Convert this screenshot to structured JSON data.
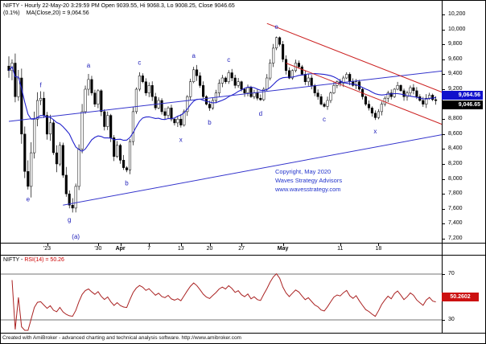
{
  "window": {
    "title_line1": "NIFTY - Hourly 22-May-20 3:29:59 PM Open 9039.55, Hi 9068.3, Lo 9008.25, Close 9046.65",
    "title_line2_pct": "(0.1%)",
    "title_line2_ma": "MA(Close,20) = 9,064.56"
  },
  "watermark": {
    "line1": "Copyright, May 2020",
    "line2": "Waves Strategy Advisors",
    "line3": "www.wavesstrategy.com"
  },
  "price_axis": {
    "labels": [
      "10,200",
      "10,000",
      "9,800",
      "9,600",
      "9,400",
      "9,200",
      "9,000",
      "8,800",
      "8,600",
      "8,400",
      "8,200",
      "8,000",
      "7,800",
      "7,600",
      "7,400",
      "7,200"
    ],
    "step": 200,
    "top_value": 10200,
    "badges": [
      {
        "text": "9,064.56",
        "price": 9064.56,
        "bg": "#1111cc",
        "offset": -11
      },
      {
        "text": "9,046.65",
        "price": 9046.65,
        "bg": "#000000",
        "offset": 0
      }
    ]
  },
  "time_axis": {
    "ticks": [
      {
        "label": "'23",
        "bar": 12,
        "bold": false
      },
      {
        "label": "'30",
        "bar": 28,
        "bold": false
      },
      {
        "label": "Apr",
        "bar": 35,
        "bold": true
      },
      {
        "label": "7",
        "bar": 44,
        "bold": false
      },
      {
        "label": "13",
        "bar": 54,
        "bold": false
      },
      {
        "label": "20",
        "bar": 63,
        "bold": false
      },
      {
        "label": "27",
        "bar": 73,
        "bold": false
      },
      {
        "label": "May",
        "bar": 86,
        "bold": true
      },
      {
        "label": "11",
        "bar": 104,
        "bold": false
      },
      {
        "label": "18",
        "bar": 116,
        "bold": false
      }
    ]
  },
  "rsi_panel": {
    "title_name": "NIFTY - ",
    "title_value": "RSI(14) = 50.26",
    "levels": [
      70,
      30
    ],
    "level_labels": [
      "70",
      "30"
    ],
    "badge": {
      "text": "50.2602",
      "value": 50.26,
      "bg": "#cc1111"
    }
  },
  "status_bar": {
    "text": "Created with AmiBroker - advanced charting and technical analysis software. http://www.amibroker.com"
  },
  "colors": {
    "candle": "#000000",
    "ma_line": "#2222cc",
    "wave_label": "#2222bb",
    "rsi_line": "#aa2222",
    "rsi_level": "#444444",
    "watermark": "#2233cc"
  },
  "chart_data": {
    "type": "candlestick",
    "symbol": "NIFTY",
    "interval": "Hourly",
    "title": "NIFTY Hourly with MA(20), Elliott wave labels and RSI(14)",
    "last_bar": {
      "date": "22-May-20 3:29:59 PM",
      "open": 9039.55,
      "high": 9068.3,
      "low": 9008.25,
      "close": 9046.65,
      "change_pct": 0.1,
      "ma20": 9064.56,
      "rsi14": 50.26
    },
    "price_range": [
      7200,
      10200
    ],
    "ma_period": 20,
    "rsi_period": 14,
    "rsi_levels": [
      70,
      30
    ],
    "closes": [
      9450,
      9550,
      9100,
      9350,
      8600,
      8100,
      7900,
      8350,
      8800,
      9050,
      9080,
      8850,
      8600,
      8750,
      8350,
      8200,
      8450,
      8050,
      7800,
      7650,
      7610,
      7900,
      8400,
      8900,
      9200,
      9330,
      9150,
      9000,
      9180,
      8900,
      8700,
      8850,
      8550,
      8300,
      8450,
      8250,
      8150,
      8120,
      8500,
      8900,
      9200,
      9380,
      9300,
      9150,
      9250,
      9100,
      8950,
      9050,
      8900,
      8850,
      8950,
      8800,
      8750,
      8800,
      8720,
      8900,
      9100,
      9300,
      9460,
      9380,
      9250,
      9100,
      9000,
      8950,
      9050,
      9150,
      9280,
      9350,
      9300,
      9420,
      9350,
      9250,
      9300,
      9200,
      9150,
      9220,
      9100,
      9150,
      9080,
      9060,
      9200,
      9350,
      9550,
      9750,
      9890,
      9800,
      9600,
      9450,
      9350,
      9450,
      9550,
      9500,
      9400,
      9300,
      9350,
      9250,
      9150,
      9100,
      9000,
      8970,
      9050,
      9150,
      9250,
      9300,
      9280,
      9350,
      9400,
      9300,
      9250,
      9300,
      9200,
      9100,
      9000,
      8950,
      8880,
      8820,
      8900,
      9000,
      9080,
      9150,
      9100,
      9200,
      9250,
      9180,
      9100,
      9150,
      9220,
      9180,
      9100,
      9050,
      9000,
      9080,
      9120,
      9060,
      9046.65
    ],
    "wave_labels": [
      {
        "text": "e",
        "bar": 6,
        "price": 7730
      },
      {
        "text": "f",
        "bar": 10,
        "price": 9260
      },
      {
        "text": "g",
        "bar": 19,
        "price": 7460
      },
      {
        "text": "(a)",
        "bar": 21,
        "price": 7230
      },
      {
        "text": "a",
        "bar": 25,
        "price": 9520
      },
      {
        "text": "b",
        "bar": 37,
        "price": 7950
      },
      {
        "text": "c",
        "bar": 41,
        "price": 9560
      },
      {
        "text": "x",
        "bar": 54,
        "price": 8530
      },
      {
        "text": "a",
        "bar": 58,
        "price": 9650
      },
      {
        "text": "b",
        "bar": 63,
        "price": 8760
      },
      {
        "text": "c",
        "bar": 69,
        "price": 9600
      },
      {
        "text": "d",
        "bar": 79,
        "price": 8880
      },
      {
        "text": "e",
        "bar": 84,
        "price": 10040
      },
      {
        "text": "c",
        "bar": 99,
        "price": 8800
      },
      {
        "text": "x",
        "bar": 115,
        "price": 8640
      }
    ],
    "trendlines": [
      {
        "name": "rising-channel-upper",
        "bar1": 0,
        "price1": 8770,
        "bar2": 137,
        "price2": 9450,
        "color": "#3333cc"
      },
      {
        "name": "rising-channel-lower",
        "bar1": 17,
        "price1": 7650,
        "bar2": 137,
        "price2": 8600,
        "color": "#3333cc"
      },
      {
        "name": "falling-channel-upper",
        "bar1": 81,
        "price1": 10080,
        "bar2": 139,
        "price2": 9110,
        "color": "#cc2222"
      },
      {
        "name": "falling-channel-lower",
        "bar1": 87,
        "price1": 9550,
        "bar2": 139,
        "price2": 8680,
        "color": "#cc2222"
      }
    ]
  }
}
